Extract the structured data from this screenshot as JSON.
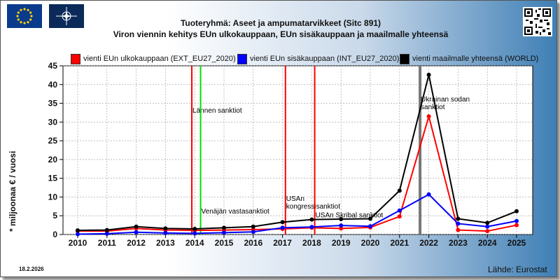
{
  "header": {
    "title_line1": "Tuoteryhmä: Aseet ja ampumatarvikkeet (Sitc 891)",
    "title_line2": "Viron viennin kehitys EUn ulkokauppaan, EUn sisäkauppaan ja maailmalle yhteensä",
    "flags": [
      "eu-flag",
      "nato-flag"
    ],
    "qr": "qr-code"
  },
  "footer": {
    "date": "18.2.2026",
    "source": "Lähde: Eurostat"
  },
  "chart_data": {
    "type": "line",
    "ylabel": "* miljoonaa € / vuosi",
    "ylim": [
      0,
      45
    ],
    "yticks": [
      0,
      5,
      10,
      15,
      20,
      25,
      30,
      35,
      40,
      45
    ],
    "grid": true,
    "legend_position": "top",
    "categories": [
      "2010",
      "2011",
      "2012",
      "2013",
      "2014",
      "2015",
      "2016",
      "2017",
      "2018",
      "2019",
      "2020",
      "2021",
      "2022",
      "2023",
      "2024",
      "2025"
    ],
    "series": [
      {
        "name": "vienti EUn ulkokauppaan (EXT_EU27_2020)",
        "color": "#ff0000",
        "values": [
          0.9,
          0.9,
          1.6,
          1.2,
          1.1,
          1.2,
          1.3,
          1.5,
          1.8,
          1.6,
          1.9,
          4.8,
          31.5,
          1.2,
          0.9,
          2.5
        ]
      },
      {
        "name": "vienti EUn sisäkauppaan (INT_EU27_2020)",
        "color": "#0000ff",
        "values": [
          0.1,
          0.2,
          0.6,
          0.4,
          0.3,
          0.5,
          0.7,
          1.8,
          2.0,
          2.4,
          2.2,
          6.4,
          10.7,
          2.9,
          2.1,
          3.6
        ]
      },
      {
        "name": "vienti maailmalle yhteensä (WORLD)",
        "color": "#000000",
        "values": [
          1.1,
          1.2,
          2.1,
          1.6,
          1.5,
          1.8,
          2.1,
          3.3,
          4.0,
          4.1,
          4.2,
          11.7,
          42.6,
          4.2,
          3.1,
          6.2
        ]
      }
    ],
    "annotations": [
      {
        "label": "Lännen sanktiot",
        "x": 2013.9,
        "color": "#ff0000",
        "label_y": 32.5
      },
      {
        "label": "Venäjän vastasanktiot",
        "x": 2014.2,
        "color": "#00dd00",
        "label_y": 5.6
      },
      {
        "label": "USAn",
        "label2": "kongressisanktiot",
        "x": 2017.1,
        "color": "#ff0000",
        "label_y": 9.0
      },
      {
        "label": "USAn Skribal sanktiot",
        "x": 2018.1,
        "color": "#ff0000",
        "label_y": 4.6
      },
      {
        "label": "Ukrainan sodan",
        "label2": "sanktiot",
        "x": 2021.7,
        "color": "#777777",
        "label_y": 35.5
      }
    ]
  }
}
